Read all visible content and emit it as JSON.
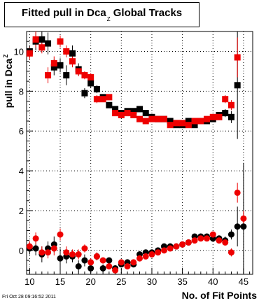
{
  "title": "Fitted pull in Dca",
  "title_sub": "Z",
  "title_suffix": " Global Tracks",
  "ylabel": "pull in Dca",
  "ylabel_sub": "Z",
  "xlabel": "No. of Fit Points",
  "footer": "Fri Oct 28 09:16:52 2011",
  "chart_data": {
    "type": "scatter",
    "xlim": [
      9.5,
      46.5
    ],
    "ylim": [
      -1.2,
      11.0
    ],
    "xticks": [
      10,
      15,
      20,
      25,
      30,
      35,
      40,
      45
    ],
    "yticks": [
      0,
      2,
      4,
      6,
      8,
      10
    ],
    "colors": {
      "black": "#000000",
      "red": "#ee0000"
    },
    "series": [
      {
        "marker": "square",
        "color": "#000000",
        "x": [
          10,
          11,
          12,
          13,
          14,
          15,
          16,
          17,
          18,
          19,
          20,
          21,
          22,
          23,
          24,
          25,
          26,
          27,
          28,
          29,
          30,
          31,
          32,
          33,
          34,
          35,
          36,
          37,
          38,
          39,
          40,
          41,
          42,
          43,
          44
        ],
        "y": [
          10.0,
          10.5,
          10.6,
          10.4,
          9.2,
          9.3,
          8.8,
          9.9,
          9.1,
          7.9,
          8.4,
          8.1,
          7.7,
          7.3,
          7.1,
          6.9,
          7.0,
          7.0,
          7.1,
          6.9,
          6.7,
          6.6,
          6.6,
          6.5,
          6.3,
          6.3,
          6.5,
          6.3,
          6.5,
          6.5,
          6.6,
          6.8,
          6.9,
          6.7,
          8.3
        ],
        "err": [
          0.3,
          0.45,
          0.6,
          0.55,
          0.4,
          0.35,
          0.5,
          0.4,
          0.3,
          0.25,
          0.25,
          0.2,
          0.15,
          0.15,
          0.15,
          0.1,
          0.1,
          0.1,
          0.1,
          0.1,
          0.1,
          0.1,
          0.1,
          0.1,
          0.1,
          0.1,
          0.1,
          0.1,
          0.1,
          0.1,
          0.1,
          0.15,
          0.2,
          0.3,
          2.7
        ]
      },
      {
        "marker": "square",
        "color": "#ee0000",
        "x": [
          10,
          11,
          12,
          13,
          14,
          15,
          16,
          17,
          18,
          19,
          20,
          21,
          22,
          23,
          24,
          25,
          26,
          27,
          28,
          29,
          30,
          31,
          32,
          33,
          34,
          35,
          36,
          37,
          38,
          39,
          40,
          41,
          42,
          43,
          44
        ],
        "y": [
          9.9,
          10.6,
          10.2,
          8.8,
          9.4,
          10.5,
          10.0,
          9.5,
          9.0,
          8.8,
          8.7,
          7.6,
          7.6,
          7.7,
          6.9,
          6.8,
          6.9,
          6.8,
          6.6,
          6.5,
          6.6,
          6.6,
          6.6,
          6.3,
          6.4,
          6.4,
          6.3,
          6.5,
          6.5,
          6.6,
          6.7,
          6.7,
          7.6,
          7.3,
          9.7
        ],
        "err": [
          0.3,
          0.4,
          0.3,
          0.4,
          0.35,
          0.3,
          0.3,
          0.3,
          0.25,
          0.2,
          0.2,
          0.2,
          0.15,
          0.15,
          0.15,
          0.1,
          0.1,
          0.1,
          0.1,
          0.1,
          0.1,
          0.1,
          0.1,
          0.1,
          0.1,
          0.1,
          0.1,
          0.1,
          0.1,
          0.1,
          0.1,
          0.1,
          0.2,
          0.25,
          1.0
        ]
      },
      {
        "marker": "circle",
        "color": "#000000",
        "x": [
          10,
          11,
          12,
          13,
          14,
          15,
          16,
          17,
          18,
          19,
          20,
          21,
          22,
          23,
          24,
          25,
          26,
          27,
          28,
          29,
          30,
          31,
          32,
          33,
          34,
          35,
          36,
          37,
          38,
          39,
          40,
          41,
          42,
          43,
          44,
          45
        ],
        "y": [
          0.1,
          0.1,
          -0.2,
          0.1,
          0.3,
          -0.4,
          -0.3,
          -0.3,
          -0.8,
          -0.5,
          -0.9,
          -0.3,
          -0.9,
          -0.5,
          -0.9,
          -0.7,
          -0.6,
          -0.7,
          -0.2,
          -0.1,
          -0.1,
          0.0,
          0.2,
          0.2,
          0.2,
          0.3,
          0.4,
          0.7,
          0.7,
          0.7,
          0.6,
          0.6,
          0.5,
          0.8,
          1.2,
          1.2
        ],
        "err": [
          0.3,
          0.35,
          0.4,
          0.35,
          0.4,
          0.5,
          0.35,
          0.3,
          0.3,
          0.3,
          0.25,
          0.2,
          0.2,
          0.15,
          0.15,
          0.15,
          0.1,
          0.1,
          0.1,
          0.1,
          0.1,
          0.1,
          0.1,
          0.1,
          0.1,
          0.1,
          0.1,
          0.1,
          0.1,
          0.1,
          0.1,
          0.15,
          0.2,
          0.25,
          1.0,
          3.2
        ]
      },
      {
        "marker": "circle",
        "color": "#ee0000",
        "x": [
          10,
          11,
          12,
          13,
          14,
          15,
          16,
          17,
          18,
          19,
          20,
          21,
          22,
          23,
          24,
          25,
          26,
          27,
          28,
          29,
          30,
          31,
          32,
          33,
          34,
          35,
          36,
          37,
          38,
          39,
          40,
          41,
          42,
          43,
          44,
          45
        ],
        "y": [
          0.2,
          0.6,
          -0.1,
          -0.1,
          0.1,
          0.8,
          -0.1,
          -0.2,
          -0.2,
          0.1,
          -0.6,
          -0.3,
          -0.5,
          -0.8,
          -1.0,
          -0.6,
          -0.8,
          -0.6,
          -0.4,
          -0.3,
          -0.2,
          -0.1,
          0.0,
          0.1,
          0.2,
          0.3,
          0.4,
          0.5,
          0.6,
          0.6,
          0.8,
          0.5,
          0.4,
          -0.1,
          2.9,
          1.6
        ],
        "err": [
          0.25,
          0.3,
          0.3,
          0.3,
          0.35,
          0.3,
          0.3,
          0.25,
          0.25,
          0.2,
          0.2,
          0.2,
          0.15,
          0.15,
          0.15,
          0.1,
          0.1,
          0.1,
          0.1,
          0.1,
          0.1,
          0.1,
          0.1,
          0.1,
          0.1,
          0.1,
          0.1,
          0.1,
          0.1,
          0.1,
          0.1,
          0.1,
          0.15,
          0.2,
          0.5,
          0.4
        ]
      }
    ]
  }
}
